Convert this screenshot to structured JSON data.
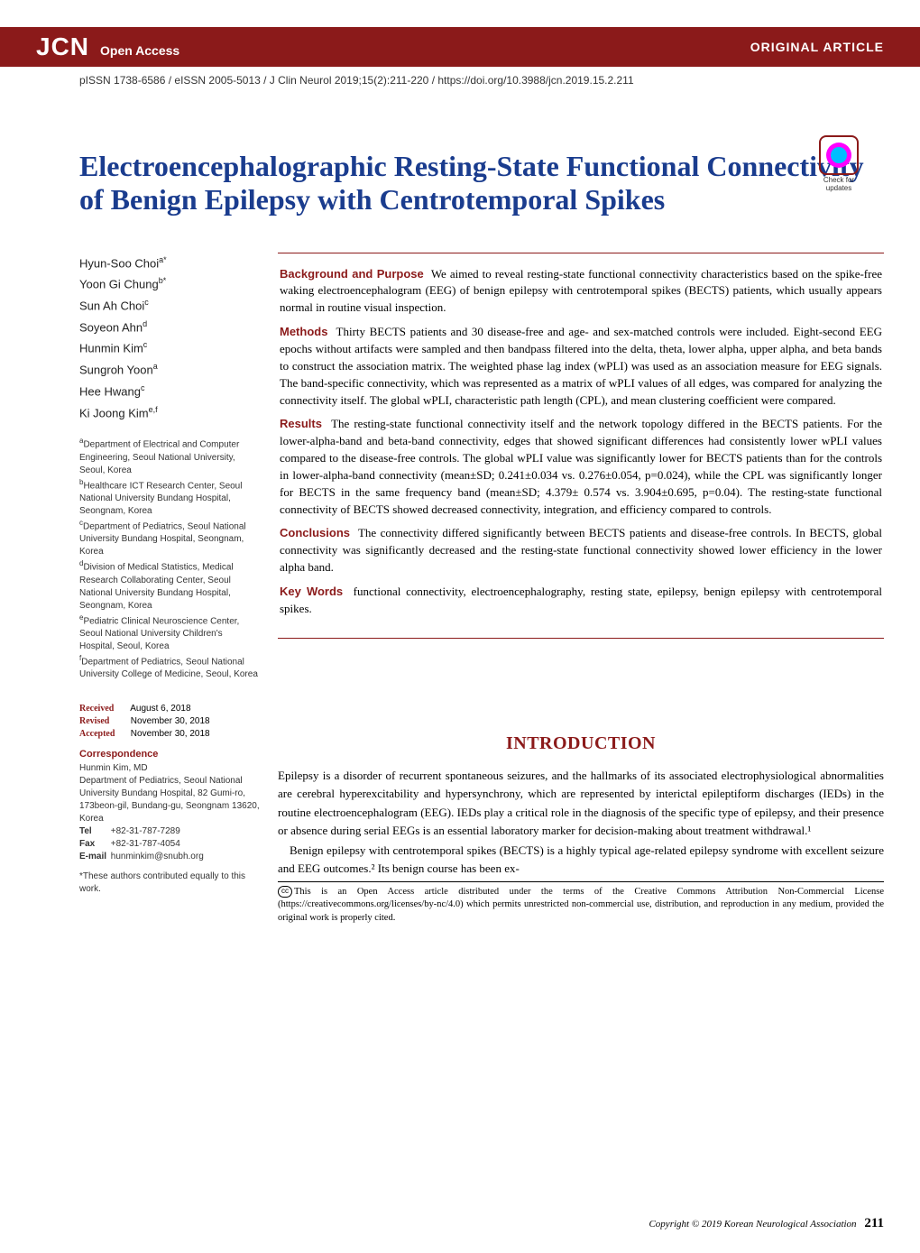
{
  "header": {
    "journal_abbrev": "JCN",
    "open_access": "Open Access",
    "article_type": "ORIGINAL ARTICLE",
    "issn_line": "pISSN 1738-6586 / eISSN 2005-5013 / J Clin Neurol 2019;15(2):211-220 / https://doi.org/10.3988/jcn.2019.15.2.211",
    "check_updates": "Check for updates"
  },
  "title": "Electroencephalographic Resting-State Functional Connectivity of Benign Epilepsy with Centrotemporal Spikes",
  "authors": [
    {
      "name": "Hyun-Soo Choi",
      "sup": "a*"
    },
    {
      "name": "Yoon Gi Chung",
      "sup": "b*"
    },
    {
      "name": "Sun Ah Choi",
      "sup": "c"
    },
    {
      "name": "Soyeon Ahn",
      "sup": "d"
    },
    {
      "name": "Hunmin Kim",
      "sup": "c"
    },
    {
      "name": "Sungroh Yoon",
      "sup": "a"
    },
    {
      "name": "Hee Hwang",
      "sup": "c"
    },
    {
      "name": "Ki Joong Kim",
      "sup": "e,f"
    }
  ],
  "affiliations": [
    {
      "sup": "a",
      "text": "Department of Electrical and Computer Engineering, Seoul National University, Seoul, Korea"
    },
    {
      "sup": "b",
      "text": "Healthcare ICT Research Center, Seoul National University Bundang Hospital, Seongnam, Korea"
    },
    {
      "sup": "c",
      "text": "Department of Pediatrics, Seoul National University Bundang Hospital, Seongnam, Korea"
    },
    {
      "sup": "d",
      "text": "Division of Medical Statistics, Medical Research Collaborating Center, Seoul National University Bundang Hospital, Seongnam, Korea"
    },
    {
      "sup": "e",
      "text": "Pediatric Clinical Neuroscience Center, Seoul National University Children's Hospital, Seoul, Korea"
    },
    {
      "sup": "f",
      "text": "Department of Pediatrics, Seoul National University College of Medicine, Seoul, Korea"
    }
  ],
  "abstract": {
    "background_label": "Background and Purpose",
    "background": "We aimed to reveal resting-state functional connectivity characteristics based on the spike-free waking electroencephalogram (EEG) of benign epilepsy with centrotemporal spikes (BECTS) patients, which usually appears normal in routine visual inspection.",
    "methods_label": "Methods",
    "methods": "Thirty BECTS patients and 30 disease-free and age- and sex-matched controls were included. Eight-second EEG epochs without artifacts were sampled and then bandpass filtered into the delta, theta, lower alpha, upper alpha, and beta bands to construct the association matrix. The weighted phase lag index (wPLI) was used as an association measure for EEG signals. The band-specific connectivity, which was represented as a matrix of wPLI values of all edges, was compared for analyzing the connectivity itself. The global wPLI, characteristic path length (CPL), and mean clustering coefficient were compared.",
    "results_label": "Results",
    "results": "The resting-state functional connectivity itself and the network topology differed in the BECTS patients. For the lower-alpha-band and beta-band connectivity, edges that showed significant differences had consistently lower wPLI values compared to the disease-free controls. The global wPLI value was significantly lower for BECTS patients than for the controls in lower-alpha-band connectivity (mean±SD; 0.241±0.034 vs. 0.276±0.054, p=0.024), while the CPL was significantly longer for BECTS in the same frequency band (mean±SD; 4.379± 0.574 vs. 3.904±0.695, p=0.04). The resting-state functional connectivity of BECTS showed decreased connectivity, integration, and efficiency compared to controls.",
    "conclusions_label": "Conclusions",
    "conclusions": "The connectivity differed significantly between BECTS patients and disease-free controls. In BECTS, global connectivity was significantly decreased and the resting-state functional connectivity showed lower efficiency in the lower alpha band.",
    "keywords_label": "Key Words",
    "keywords": "functional connectivity, electroencephalography, resting state, epilepsy, benign epilepsy with centrotemporal spikes."
  },
  "introduction": {
    "heading": "INTRODUCTION",
    "p1": "Epilepsy is a disorder of recurrent spontaneous seizures, and the hallmarks of its associated electrophysiological abnormalities are cerebral hyperexcitability and hypersynchrony, which are represented by interictal epileptiform discharges (IEDs) in the routine electroencephalogram (EEG). IEDs play a critical role in the diagnosis of the specific type of epilepsy, and their presence or absence during serial EEGs is an essential laboratory marker for decision-making about treatment withdrawal.¹",
    "p2": "Benign epilepsy with centrotemporal spikes (BECTS) is a highly typical age-related epilepsy syndrome with excellent seizure and EEG outcomes.² Its benign course has been ex-"
  },
  "dates": {
    "received_label": "Received",
    "received": "August 6, 2018",
    "revised_label": "Revised",
    "revised": "November 30, 2018",
    "accepted_label": "Accepted",
    "accepted": "November 30, 2018"
  },
  "correspondence": {
    "heading": "Correspondence",
    "name": "Hunmin Kim, MD",
    "address": "Department of Pediatrics, Seoul National University Bundang Hospital, 82 Gumi-ro, 173beon-gil, Bundang-gu, Seongnam 13620, Korea",
    "tel_label": "Tel",
    "tel": "+82-31-787-7289",
    "fax_label": "Fax",
    "fax": "+82-31-787-4054",
    "email_label": "E-mail",
    "email": "hunminkim@snubh.org"
  },
  "equal_note": "*These authors contributed equally to this work.",
  "license": "This is an Open Access article distributed under the terms of the Creative Commons Attribution Non-Commercial License (https://creativecommons.org/licenses/by-nc/4.0) which permits unrestricted non-commercial use, distribution, and reproduction in any medium, provided the original work is properly cited.",
  "cc_label": "cc",
  "footer": {
    "copyright": "Copyright © 2019 Korean Neurological Association",
    "page": "211"
  },
  "colors": {
    "brand_red": "#8b1a1a",
    "title_blue": "#1a3c8e"
  }
}
